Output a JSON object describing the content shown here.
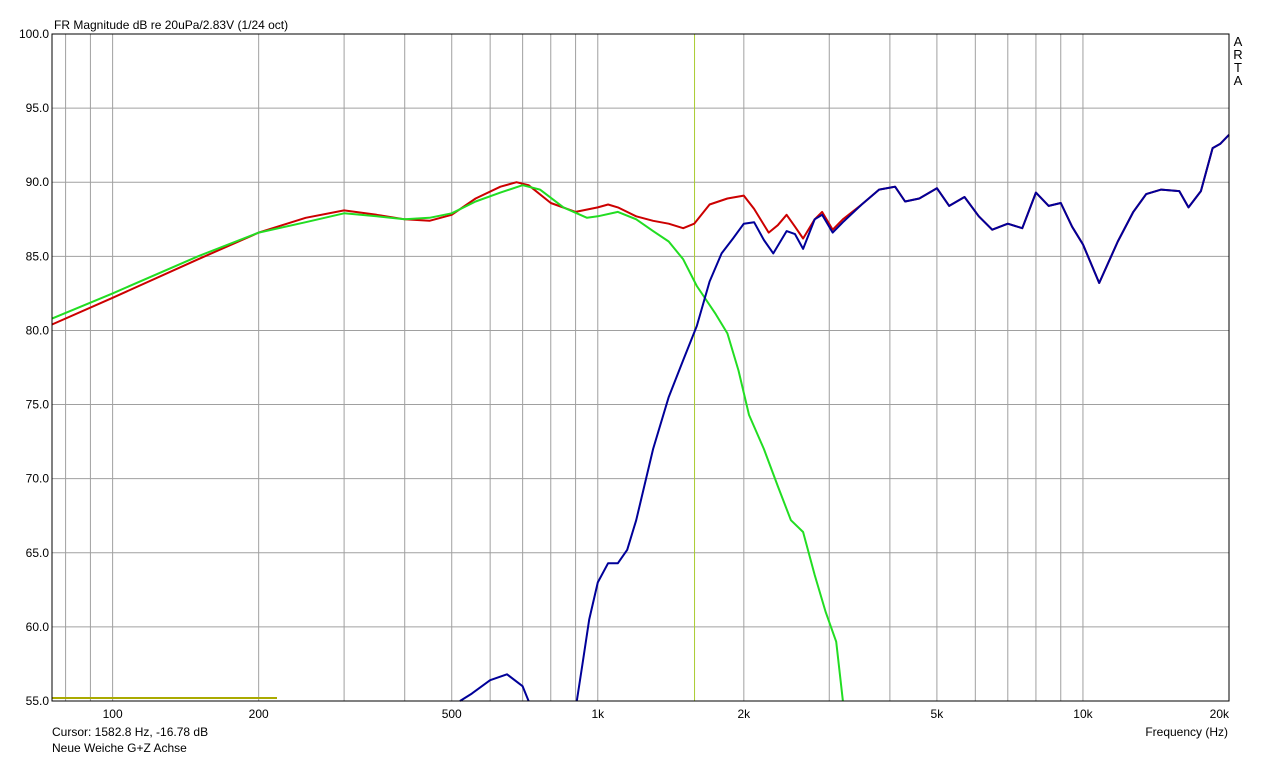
{
  "chart_data": {
    "type": "line",
    "title": "FR Magnitude dB re 20uPa/2.83V (1/24 oct)",
    "xlabel": "Frequency (Hz)",
    "ylabel": "",
    "x_scale": "log",
    "xlim": [
      75,
      20000
    ],
    "ylim": [
      55,
      100
    ],
    "grid": true,
    "y_ticks": [
      55,
      60,
      65,
      70,
      75,
      80,
      85,
      90,
      95,
      100
    ],
    "y_tick_labels": [
      "55.0",
      "60.0",
      "65.0",
      "70.0",
      "75.0",
      "80.0",
      "85.0",
      "90.0",
      "95.0",
      "100.0"
    ],
    "x_ticks": [
      100,
      200,
      500,
      1000,
      2000,
      5000,
      10000,
      20000
    ],
    "x_tick_labels": [
      "100",
      "200",
      "500",
      "1k",
      "2k",
      "5k",
      "10k",
      "20k"
    ],
    "cursor_x": 1582.8,
    "series": [
      {
        "color": "#cc0000",
        "points": [
          [
            75,
            80.4
          ],
          [
            100,
            82.2
          ],
          [
            150,
            84.8
          ],
          [
            200,
            86.6
          ],
          [
            250,
            87.6
          ],
          [
            300,
            88.1
          ],
          [
            350,
            87.8
          ],
          [
            400,
            87.5
          ],
          [
            450,
            87.4
          ],
          [
            500,
            87.8
          ],
          [
            560,
            88.9
          ],
          [
            630,
            89.7
          ],
          [
            680,
            90.0
          ],
          [
            720,
            89.8
          ],
          [
            800,
            88.6
          ],
          [
            900,
            88.0
          ],
          [
            1000,
            88.3
          ],
          [
            1050,
            88.5
          ],
          [
            1100,
            88.3
          ],
          [
            1200,
            87.7
          ],
          [
            1300,
            87.4
          ],
          [
            1400,
            87.2
          ],
          [
            1500,
            86.9
          ],
          [
            1580,
            87.2
          ],
          [
            1700,
            88.5
          ],
          [
            1850,
            88.9
          ],
          [
            2000,
            89.1
          ],
          [
            2100,
            88.2
          ],
          [
            2250,
            86.6
          ],
          [
            2350,
            87.1
          ],
          [
            2450,
            87.8
          ],
          [
            2550,
            87.0
          ],
          [
            2650,
            86.2
          ],
          [
            2800,
            87.5
          ],
          [
            2900,
            88.0
          ],
          [
            3050,
            86.8
          ],
          [
            3200,
            87.5
          ],
          [
            3500,
            88.5
          ],
          [
            3800,
            89.5
          ],
          [
            4100,
            89.7
          ],
          [
            4300,
            88.7
          ],
          [
            4600,
            88.9
          ],
          [
            5000,
            89.6
          ],
          [
            5300,
            88.4
          ],
          [
            5700,
            89.0
          ],
          [
            6100,
            87.7
          ],
          [
            6500,
            86.8
          ],
          [
            7000,
            87.2
          ],
          [
            7500,
            86.9
          ],
          [
            8000,
            89.3
          ],
          [
            8500,
            88.4
          ],
          [
            9000,
            88.6
          ],
          [
            9500,
            87.0
          ],
          [
            10000,
            85.8
          ],
          [
            10800,
            83.2
          ],
          [
            11800,
            86.0
          ],
          [
            12700,
            88.0
          ],
          [
            13500,
            89.2
          ],
          [
            14500,
            89.5
          ],
          [
            15800,
            89.4
          ],
          [
            16500,
            88.3
          ],
          [
            17500,
            89.4
          ],
          [
            18500,
            92.3
          ],
          [
            19200,
            92.6
          ],
          [
            20000,
            93.2
          ]
        ]
      },
      {
        "color": "#22dd22",
        "points": [
          [
            75,
            80.8
          ],
          [
            100,
            82.5
          ],
          [
            150,
            85.0
          ],
          [
            200,
            86.6
          ],
          [
            250,
            87.3
          ],
          [
            300,
            87.9
          ],
          [
            350,
            87.7
          ],
          [
            400,
            87.5
          ],
          [
            450,
            87.6
          ],
          [
            500,
            87.9
          ],
          [
            560,
            88.7
          ],
          [
            630,
            89.3
          ],
          [
            700,
            89.8
          ],
          [
            760,
            89.5
          ],
          [
            850,
            88.3
          ],
          [
            950,
            87.6
          ],
          [
            1000,
            87.7
          ],
          [
            1100,
            88.0
          ],
          [
            1200,
            87.5
          ],
          [
            1300,
            86.7
          ],
          [
            1400,
            86.0
          ],
          [
            1500,
            84.8
          ],
          [
            1600,
            83.0
          ],
          [
            1750,
            81.1
          ],
          [
            1850,
            79.8
          ],
          [
            1950,
            77.3
          ],
          [
            2050,
            74.3
          ],
          [
            2200,
            72.0
          ],
          [
            2350,
            69.5
          ],
          [
            2500,
            67.2
          ],
          [
            2650,
            66.4
          ],
          [
            2800,
            63.5
          ],
          [
            2950,
            61.0
          ],
          [
            3100,
            59.0
          ],
          [
            3200,
            55.0
          ]
        ]
      },
      {
        "color": "#000099",
        "points": [
          [
            720,
            55.0
          ],
          [
            700,
            56.0
          ],
          [
            650,
            56.8
          ],
          [
            600,
            56.4
          ],
          [
            550,
            55.5
          ],
          [
            520,
            55.0
          ]
        ]
      },
      {
        "color": "#000099",
        "points": [
          [
            905,
            55.0
          ],
          [
            930,
            57.5
          ],
          [
            960,
            60.5
          ],
          [
            1000,
            63.0
          ],
          [
            1050,
            64.3
          ],
          [
            1100,
            64.3
          ],
          [
            1150,
            65.2
          ],
          [
            1200,
            67.2
          ],
          [
            1300,
            72.0
          ],
          [
            1400,
            75.5
          ],
          [
            1500,
            78.0
          ],
          [
            1600,
            80.3
          ],
          [
            1700,
            83.3
          ],
          [
            1800,
            85.2
          ],
          [
            1900,
            86.2
          ],
          [
            2000,
            87.2
          ],
          [
            2100,
            87.3
          ],
          [
            2200,
            86.1
          ],
          [
            2300,
            85.2
          ],
          [
            2450,
            86.7
          ],
          [
            2550,
            86.5
          ],
          [
            2650,
            85.5
          ],
          [
            2800,
            87.5
          ],
          [
            2900,
            87.8
          ],
          [
            3050,
            86.6
          ],
          [
            3200,
            87.3
          ],
          [
            3500,
            88.5
          ],
          [
            3800,
            89.5
          ],
          [
            4100,
            89.7
          ],
          [
            4300,
            88.7
          ],
          [
            4600,
            88.9
          ],
          [
            5000,
            89.6
          ],
          [
            5300,
            88.4
          ],
          [
            5700,
            89.0
          ],
          [
            6100,
            87.7
          ],
          [
            6500,
            86.8
          ],
          [
            7000,
            87.2
          ],
          [
            7500,
            86.9
          ],
          [
            8000,
            89.3
          ],
          [
            8500,
            88.4
          ],
          [
            9000,
            88.6
          ],
          [
            9500,
            87.0
          ],
          [
            10000,
            85.8
          ],
          [
            10800,
            83.2
          ],
          [
            11800,
            86.0
          ],
          [
            12700,
            88.0
          ],
          [
            13500,
            89.2
          ],
          [
            14500,
            89.5
          ],
          [
            15800,
            89.4
          ],
          [
            16500,
            88.3
          ],
          [
            17500,
            89.4
          ],
          [
            18500,
            92.3
          ],
          [
            19200,
            92.6
          ],
          [
            20000,
            93.2
          ]
        ]
      }
    ]
  },
  "footer": {
    "cursor_text": "Cursor: 1582.8 Hz, -16.78 dB",
    "note_text": "Neue Weiche G+Z Achse"
  },
  "brand": {
    "letters": [
      "A",
      "R",
      "T",
      "A"
    ]
  },
  "colors": {
    "grid": "#a0a0a0",
    "cursor": "#aacc33",
    "background": "#ffffff"
  }
}
